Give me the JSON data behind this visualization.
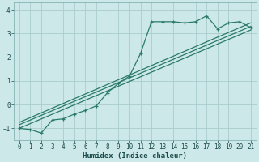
{
  "title": "",
  "xlabel": "Humidex (Indice chaleur)",
  "ylabel": "",
  "bg_color": "#cce8e8",
  "grid_color": "#aacccc",
  "line_color": "#2a7a6a",
  "xlim": [
    -0.5,
    21.5
  ],
  "ylim": [
    -1.5,
    4.3
  ],
  "yticks": [
    -1,
    0,
    1,
    2,
    3,
    4
  ],
  "xticks": [
    0,
    1,
    2,
    3,
    4,
    5,
    6,
    7,
    8,
    9,
    10,
    11,
    12,
    13,
    14,
    15,
    16,
    17,
    18,
    19,
    20,
    21
  ],
  "line1_x": [
    0,
    1,
    2,
    3,
    4,
    5,
    6,
    7,
    8,
    9,
    10,
    11,
    12,
    13,
    14,
    15,
    16,
    17,
    18,
    19,
    20,
    21
  ],
  "line1_y": [
    -1.0,
    -1.05,
    -1.2,
    -0.65,
    -0.6,
    -0.4,
    -0.25,
    -0.05,
    0.5,
    0.9,
    1.2,
    2.15,
    3.5,
    3.5,
    3.5,
    3.45,
    3.5,
    3.75,
    3.2,
    3.45,
    3.5,
    3.25
  ],
  "line2_x": [
    0,
    21
  ],
  "line2_y": [
    -1.0,
    3.15
  ],
  "line3_x": [
    0,
    21
  ],
  "line3_y": [
    -0.85,
    3.3
  ],
  "line4_x": [
    0,
    21
  ],
  "line4_y": [
    -0.75,
    3.45
  ]
}
